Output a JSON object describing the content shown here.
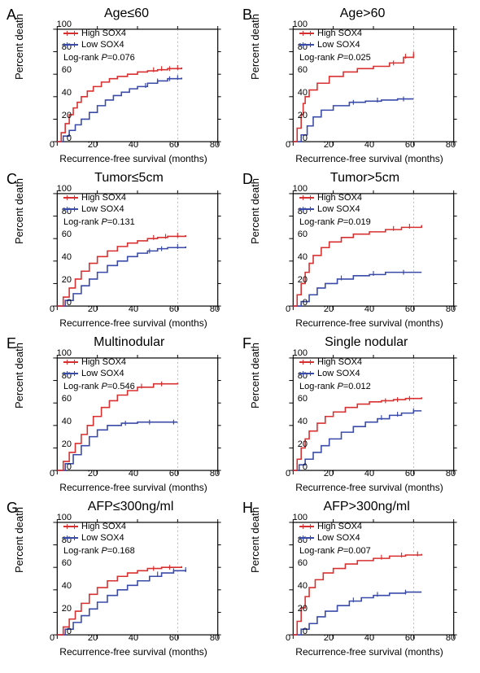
{
  "global": {
    "xlabel": "Recurrence-free survival (months)",
    "ylabel": "Percent death",
    "legend_high": "High SOX4",
    "legend_low": "Low SOX4",
    "logrank_prefix": "Log-rank ",
    "logrank_P": "P",
    "color_high": "#d83030",
    "color_low": "#3a4aa8",
    "axis_color": "#000000",
    "grid_color": "#888888",
    "xlim": [
      0,
      80
    ],
    "ylim": [
      0,
      100
    ],
    "xticks": [
      0,
      20,
      40,
      60,
      80
    ],
    "yticks": [
      0,
      20,
      40,
      60,
      80,
      100
    ],
    "line_width": 1.6,
    "font_family": "Arial"
  },
  "panels": [
    {
      "id": "A",
      "title": "Age≤60",
      "pval": "=0.076",
      "high": [
        [
          0,
          0
        ],
        [
          2,
          8
        ],
        [
          4,
          16
        ],
        [
          6,
          24
        ],
        [
          8,
          30
        ],
        [
          10,
          35
        ],
        [
          12,
          40
        ],
        [
          15,
          45
        ],
        [
          18,
          49
        ],
        [
          22,
          53
        ],
        [
          26,
          56
        ],
        [
          30,
          58
        ],
        [
          35,
          60
        ],
        [
          40,
          62
        ],
        [
          45,
          63
        ],
        [
          50,
          64
        ],
        [
          55,
          65
        ],
        [
          62,
          66
        ]
      ],
      "low": [
        [
          0,
          0
        ],
        [
          3,
          5
        ],
        [
          6,
          10
        ],
        [
          9,
          15
        ],
        [
          12,
          20
        ],
        [
          16,
          26
        ],
        [
          20,
          32
        ],
        [
          24,
          37
        ],
        [
          28,
          41
        ],
        [
          32,
          44
        ],
        [
          36,
          47
        ],
        [
          40,
          49
        ],
        [
          45,
          52
        ],
        [
          50,
          54
        ],
        [
          55,
          56
        ],
        [
          62,
          57
        ]
      ],
      "high_cens": [
        [
          48,
          64
        ],
        [
          52,
          65
        ],
        [
          56,
          65
        ],
        [
          60,
          66
        ]
      ],
      "low_cens": [
        [
          44,
          50
        ],
        [
          50,
          54
        ],
        [
          56,
          56
        ],
        [
          60,
          57
        ]
      ]
    },
    {
      "id": "B",
      "title": "Age>60",
      "pval": "=0.025",
      "high": [
        [
          0,
          0
        ],
        [
          2,
          12
        ],
        [
          4,
          24
        ],
        [
          5,
          34
        ],
        [
          6,
          40
        ],
        [
          8,
          46
        ],
        [
          12,
          52
        ],
        [
          18,
          58
        ],
        [
          25,
          62
        ],
        [
          32,
          65
        ],
        [
          40,
          67
        ],
        [
          48,
          70
        ],
        [
          55,
          75
        ],
        [
          60,
          78
        ]
      ],
      "low": [
        [
          0,
          0
        ],
        [
          4,
          6
        ],
        [
          7,
          14
        ],
        [
          10,
          22
        ],
        [
          14,
          28
        ],
        [
          20,
          32
        ],
        [
          28,
          35
        ],
        [
          36,
          36
        ],
        [
          44,
          37
        ],
        [
          52,
          38
        ],
        [
          60,
          38
        ]
      ],
      "high_cens": [
        [
          50,
          70
        ],
        [
          56,
          76
        ],
        [
          60,
          78
        ]
      ],
      "low_cens": [
        [
          30,
          35
        ],
        [
          42,
          37
        ],
        [
          55,
          38
        ]
      ]
    },
    {
      "id": "C",
      "title": "Tumor≤5cm",
      "pval": "=0.131",
      "high": [
        [
          0,
          0
        ],
        [
          3,
          8
        ],
        [
          6,
          16
        ],
        [
          9,
          24
        ],
        [
          12,
          31
        ],
        [
          16,
          38
        ],
        [
          20,
          44
        ],
        [
          25,
          49
        ],
        [
          30,
          53
        ],
        [
          35,
          56
        ],
        [
          40,
          58
        ],
        [
          45,
          60
        ],
        [
          50,
          61
        ],
        [
          55,
          62
        ],
        [
          64,
          63
        ]
      ],
      "low": [
        [
          0,
          0
        ],
        [
          4,
          5
        ],
        [
          8,
          11
        ],
        [
          12,
          18
        ],
        [
          16,
          24
        ],
        [
          20,
          30
        ],
        [
          25,
          36
        ],
        [
          30,
          40
        ],
        [
          35,
          44
        ],
        [
          40,
          47
        ],
        [
          45,
          49
        ],
        [
          50,
          51
        ],
        [
          55,
          52
        ],
        [
          64,
          53
        ]
      ],
      "high_cens": [
        [
          48,
          61
        ],
        [
          54,
          62
        ],
        [
          60,
          63
        ]
      ],
      "low_cens": [
        [
          46,
          49
        ],
        [
          52,
          51
        ],
        [
          60,
          53
        ]
      ]
    },
    {
      "id": "D",
      "title": "Tumor>5cm",
      "pval": "=0.019",
      "high": [
        [
          0,
          0
        ],
        [
          2,
          10
        ],
        [
          4,
          20
        ],
        [
          6,
          30
        ],
        [
          8,
          38
        ],
        [
          10,
          45
        ],
        [
          14,
          52
        ],
        [
          18,
          57
        ],
        [
          24,
          61
        ],
        [
          30,
          64
        ],
        [
          38,
          66
        ],
        [
          46,
          68
        ],
        [
          54,
          70
        ],
        [
          64,
          72
        ]
      ],
      "low": [
        [
          0,
          0
        ],
        [
          4,
          4
        ],
        [
          8,
          10
        ],
        [
          12,
          16
        ],
        [
          16,
          20
        ],
        [
          22,
          24
        ],
        [
          30,
          27
        ],
        [
          38,
          28
        ],
        [
          46,
          30
        ],
        [
          54,
          30
        ],
        [
          64,
          30
        ]
      ],
      "high_cens": [
        [
          50,
          69
        ],
        [
          58,
          71
        ]
      ],
      "low_cens": [
        [
          24,
          25
        ],
        [
          40,
          29
        ],
        [
          55,
          30
        ]
      ]
    },
    {
      "id": "E",
      "title": "Multinodular",
      "pval": "=0.546",
      "high": [
        [
          0,
          0
        ],
        [
          3,
          8
        ],
        [
          6,
          16
        ],
        [
          9,
          24
        ],
        [
          12,
          32
        ],
        [
          15,
          40
        ],
        [
          18,
          48
        ],
        [
          22,
          56
        ],
        [
          26,
          62
        ],
        [
          30,
          67
        ],
        [
          35,
          71
        ],
        [
          40,
          74
        ],
        [
          48,
          77
        ],
        [
          60,
          78
        ]
      ],
      "low": [
        [
          0,
          0
        ],
        [
          4,
          6
        ],
        [
          8,
          14
        ],
        [
          12,
          22
        ],
        [
          16,
          30
        ],
        [
          20,
          36
        ],
        [
          25,
          40
        ],
        [
          32,
          42
        ],
        [
          40,
          43
        ],
        [
          50,
          43
        ],
        [
          60,
          43
        ]
      ],
      "high_cens": [
        [
          42,
          75
        ],
        [
          52,
          77
        ]
      ],
      "low_cens": [
        [
          34,
          42
        ],
        [
          46,
          43
        ],
        [
          58,
          43
        ]
      ]
    },
    {
      "id": "F",
      "title": "Single nodular",
      "pval": "=0.012",
      "high": [
        [
          0,
          0
        ],
        [
          2,
          10
        ],
        [
          4,
          20
        ],
        [
          6,
          28
        ],
        [
          8,
          35
        ],
        [
          12,
          42
        ],
        [
          16,
          48
        ],
        [
          20,
          52
        ],
        [
          26,
          56
        ],
        [
          32,
          59
        ],
        [
          38,
          61
        ],
        [
          44,
          62
        ],
        [
          50,
          63
        ],
        [
          56,
          64
        ],
        [
          64,
          65
        ]
      ],
      "low": [
        [
          0,
          0
        ],
        [
          3,
          5
        ],
        [
          6,
          10
        ],
        [
          10,
          16
        ],
        [
          14,
          22
        ],
        [
          18,
          28
        ],
        [
          24,
          34
        ],
        [
          30,
          39
        ],
        [
          36,
          43
        ],
        [
          42,
          46
        ],
        [
          48,
          49
        ],
        [
          54,
          51
        ],
        [
          60,
          53
        ],
        [
          64,
          53
        ]
      ],
      "high_cens": [
        [
          46,
          62
        ],
        [
          52,
          63
        ],
        [
          58,
          64
        ]
      ],
      "low_cens": [
        [
          44,
          47
        ],
        [
          52,
          50
        ],
        [
          60,
          53
        ]
      ]
    },
    {
      "id": "G",
      "title": "AFP≤300ng/ml",
      "pval": "=0.168",
      "high": [
        [
          0,
          0
        ],
        [
          3,
          7
        ],
        [
          6,
          14
        ],
        [
          9,
          21
        ],
        [
          12,
          28
        ],
        [
          16,
          36
        ],
        [
          20,
          42
        ],
        [
          25,
          48
        ],
        [
          30,
          52
        ],
        [
          35,
          55
        ],
        [
          40,
          57
        ],
        [
          45,
          59
        ],
        [
          52,
          60
        ],
        [
          62,
          61
        ]
      ],
      "low": [
        [
          0,
          0
        ],
        [
          4,
          5
        ],
        [
          8,
          11
        ],
        [
          12,
          17
        ],
        [
          16,
          23
        ],
        [
          20,
          29
        ],
        [
          25,
          35
        ],
        [
          30,
          40
        ],
        [
          35,
          44
        ],
        [
          40,
          48
        ],
        [
          46,
          52
        ],
        [
          52,
          55
        ],
        [
          58,
          57
        ],
        [
          64,
          58
        ]
      ],
      "high_cens": [
        [
          48,
          59
        ],
        [
          56,
          60
        ]
      ],
      "low_cens": [
        [
          50,
          54
        ],
        [
          58,
          57
        ],
        [
          64,
          58
        ]
      ]
    },
    {
      "id": "H",
      "title": "AFP>300ng/ml",
      "pval": "=0.007",
      "high": [
        [
          0,
          0
        ],
        [
          2,
          12
        ],
        [
          4,
          24
        ],
        [
          6,
          34
        ],
        [
          8,
          42
        ],
        [
          11,
          49
        ],
        [
          15,
          55
        ],
        [
          20,
          59
        ],
        [
          26,
          63
        ],
        [
          32,
          66
        ],
        [
          40,
          68
        ],
        [
          48,
          70
        ],
        [
          56,
          71
        ],
        [
          64,
          72
        ]
      ],
      "low": [
        [
          0,
          0
        ],
        [
          4,
          5
        ],
        [
          8,
          10
        ],
        [
          12,
          16
        ],
        [
          16,
          21
        ],
        [
          22,
          26
        ],
        [
          28,
          30
        ],
        [
          34,
          33
        ],
        [
          40,
          35
        ],
        [
          48,
          37
        ],
        [
          56,
          38
        ],
        [
          64,
          38
        ]
      ],
      "high_cens": [
        [
          44,
          69
        ],
        [
          54,
          71
        ],
        [
          62,
          72
        ]
      ],
      "low_cens": [
        [
          30,
          31
        ],
        [
          42,
          36
        ],
        [
          56,
          38
        ]
      ]
    }
  ]
}
